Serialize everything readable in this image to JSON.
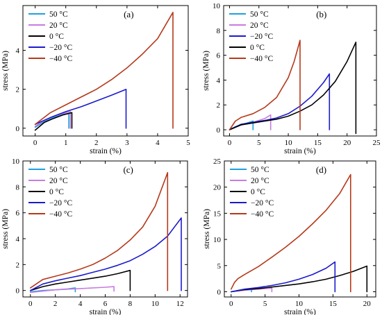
{
  "chart_data": [
    {
      "panel": "(a)",
      "type": "line",
      "xlabel": "strain (%)",
      "ylabel": "stress (MPa)",
      "xlim": [
        -0.4,
        5.0
      ],
      "ylim": [
        -0.4,
        6.3
      ],
      "xticks": [
        0,
        1,
        2,
        3,
        4,
        5
      ],
      "yticks": [
        0,
        2,
        4
      ],
      "grid": false,
      "legend_position": "top-left",
      "series": [
        {
          "name": "50 °C",
          "color": "#1f9fe0",
          "x": [
            0,
            0.3,
            0.6,
            0.9,
            1.1,
            1.1
          ],
          "y": [
            0.05,
            0.35,
            0.55,
            0.7,
            0.75,
            0
          ]
        },
        {
          "name": "20 °C",
          "color": "#c77be0",
          "x": [
            0,
            0.3,
            0.6,
            0.9,
            1.15,
            1.15
          ],
          "y": [
            0.1,
            0.4,
            0.6,
            0.75,
            0.85,
            0
          ]
        },
        {
          "name": "0 °C",
          "color": "#000000",
          "x": [
            0,
            0.3,
            0.6,
            0.9,
            1.2,
            1.2
          ],
          "y": [
            -0.1,
            0.3,
            0.5,
            0.68,
            0.8,
            0
          ]
        },
        {
          "name": "−20 °C",
          "color": "#1a1acc",
          "x": [
            0,
            0.5,
            1.0,
            1.5,
            2.0,
            2.5,
            2.97,
            2.97
          ],
          "y": [
            0.2,
            0.55,
            0.85,
            1.1,
            1.4,
            1.7,
            2.0,
            0
          ]
        },
        {
          "name": "−40 °C",
          "color": "#b5391a",
          "x": [
            0,
            0.5,
            1.0,
            1.5,
            2.0,
            2.5,
            3.0,
            3.5,
            4.0,
            4.5,
            4.5
          ],
          "y": [
            0.2,
            0.8,
            1.2,
            1.6,
            2.0,
            2.5,
            3.1,
            3.8,
            4.6,
            5.95,
            0
          ]
        }
      ]
    },
    {
      "panel": "(b)",
      "type": "line",
      "xlabel": "strain (%)",
      "ylabel": "stress (MPa)",
      "xlim": [
        -1,
        25
      ],
      "ylim": [
        -0.5,
        10
      ],
      "xticks": [
        0,
        5,
        10,
        15,
        20,
        25
      ],
      "yticks": [
        0,
        2,
        4,
        6,
        8,
        10
      ],
      "grid": false,
      "legend_position": "top-left",
      "series": [
        {
          "name": "50 °C",
          "color": "#1f9fe0",
          "x": [
            0,
            1,
            2,
            3,
            4,
            4
          ],
          "y": [
            0,
            0.25,
            0.4,
            0.55,
            0.7,
            0
          ]
        },
        {
          "name": "20 °C",
          "color": "#c77be0",
          "x": [
            0,
            2,
            4,
            6,
            7,
            7
          ],
          "y": [
            0,
            0.4,
            0.6,
            0.9,
            1.2,
            0
          ]
        },
        {
          "name": "−20 °C",
          "color": "#1a1acc",
          "x": [
            0,
            2,
            4,
            6,
            8,
            10,
            12,
            14,
            16,
            17,
            17
          ],
          "y": [
            0,
            0.45,
            0.6,
            0.75,
            0.95,
            1.3,
            1.9,
            2.7,
            3.8,
            4.5,
            0
          ]
        },
        {
          "name": "0 °C",
          "color": "#000000",
          "x": [
            0,
            2,
            4,
            6,
            8,
            10,
            12,
            14,
            16,
            18,
            20,
            21.5,
            21.5
          ],
          "y": [
            0,
            0.4,
            0.55,
            0.7,
            0.85,
            1.1,
            1.5,
            2.0,
            2.8,
            3.9,
            5.5,
            7.05,
            -0.3
          ]
        },
        {
          "name": "−40 °C",
          "color": "#b5391a",
          "x": [
            0,
            1,
            2,
            4,
            6,
            8,
            10,
            11,
            12,
            12
          ],
          "y": [
            0,
            0.7,
            1.0,
            1.3,
            1.8,
            2.6,
            4.2,
            5.5,
            7.2,
            0
          ]
        }
      ]
    },
    {
      "panel": "(c)",
      "type": "line",
      "xlabel": "strain (%)",
      "ylabel": "stress (MPa)",
      "xlim": [
        -0.6,
        12.6
      ],
      "ylim": [
        -0.5,
        10
      ],
      "xticks": [
        0,
        2,
        4,
        6,
        8,
        10,
        12
      ],
      "yticks": [
        0,
        2,
        4,
        6,
        8,
        10
      ],
      "grid": false,
      "legend_position": "top-left",
      "series": [
        {
          "name": "50 °C",
          "color": "#1f9fe0",
          "x": [
            0,
            1,
            2,
            3,
            3.6,
            3.6
          ],
          "y": [
            -0.1,
            0,
            0.05,
            0.12,
            0.2,
            -0.1
          ]
        },
        {
          "name": "20 °C",
          "color": "#c77be0",
          "x": [
            0,
            2,
            4,
            6,
            6.7,
            6.7
          ],
          "y": [
            -0.15,
            0.05,
            0.15,
            0.25,
            0.3,
            -0.05
          ]
        },
        {
          "name": "0 °C",
          "color": "#000000",
          "x": [
            0,
            1,
            2,
            3,
            4,
            5,
            6,
            7,
            8,
            8
          ],
          "y": [
            0,
            0.3,
            0.5,
            0.65,
            0.8,
            0.95,
            1.1,
            1.3,
            1.55,
            0
          ]
        },
        {
          "name": "−20 °C",
          "color": "#1a1acc",
          "x": [
            0,
            1,
            2,
            3,
            4,
            5,
            6,
            7,
            8,
            9,
            10,
            11,
            12.1,
            12.1
          ],
          "y": [
            0,
            0.5,
            0.75,
            0.95,
            1.15,
            1.4,
            1.65,
            1.95,
            2.3,
            2.8,
            3.4,
            4.2,
            5.6,
            0
          ]
        },
        {
          "name": "−40 °C",
          "color": "#b5391a",
          "x": [
            0,
            1,
            2,
            3,
            4,
            5,
            6,
            7,
            8,
            9,
            10,
            11,
            11
          ],
          "y": [
            0.2,
            0.85,
            1.1,
            1.35,
            1.65,
            2.0,
            2.5,
            3.1,
            3.9,
            4.9,
            6.5,
            9.1,
            0
          ]
        }
      ]
    },
    {
      "panel": "(d)",
      "type": "line",
      "xlabel": "strain (%)",
      "ylabel": "stress (MPa)",
      "xlim": [
        -1,
        21.3
      ],
      "ylim": [
        -1,
        25
      ],
      "xticks": [
        0,
        5,
        10,
        15,
        20
      ],
      "yticks": [
        0,
        5,
        10,
        15,
        20,
        25
      ],
      "grid": false,
      "legend_position": "top-left",
      "series": [
        {
          "name": "50 °C",
          "color": "#1f9fe0",
          "x": [
            0,
            1,
            2,
            3,
            3,
            3
          ],
          "y": [
            0,
            0.2,
            0.3,
            0.4,
            0.4,
            0
          ]
        },
        {
          "name": "20 °C",
          "color": "#c77be0",
          "x": [
            0,
            2,
            4,
            6,
            6
          ],
          "y": [
            0,
            0.3,
            0.5,
            0.7,
            0
          ]
        },
        {
          "name": "0 °C",
          "color": "#000000",
          "x": [
            0,
            2,
            4,
            6,
            8,
            10,
            12,
            14,
            16,
            18,
            20,
            20
          ],
          "y": [
            0,
            0.4,
            0.6,
            0.9,
            1.2,
            1.5,
            1.9,
            2.4,
            3.1,
            3.9,
            4.9,
            0
          ]
        },
        {
          "name": "−20 °C",
          "color": "#1a1acc",
          "x": [
            0,
            2,
            4,
            6,
            8,
            10,
            12,
            14,
            15.3,
            15.3
          ],
          "y": [
            0,
            0.5,
            0.8,
            1.2,
            1.7,
            2.4,
            3.3,
            4.5,
            5.7,
            0
          ]
        },
        {
          "name": "−40 °C",
          "color": "#b5391a",
          "x": [
            0,
            0.5,
            1,
            2,
            4,
            6,
            8,
            10,
            12,
            14,
            16,
            17.6,
            17.6
          ],
          "y": [
            0.5,
            1.8,
            2.5,
            3.3,
            4.8,
            6.6,
            8.5,
            10.6,
            13.0,
            15.6,
            18.8,
            22.4,
            0
          ]
        }
      ]
    }
  ]
}
